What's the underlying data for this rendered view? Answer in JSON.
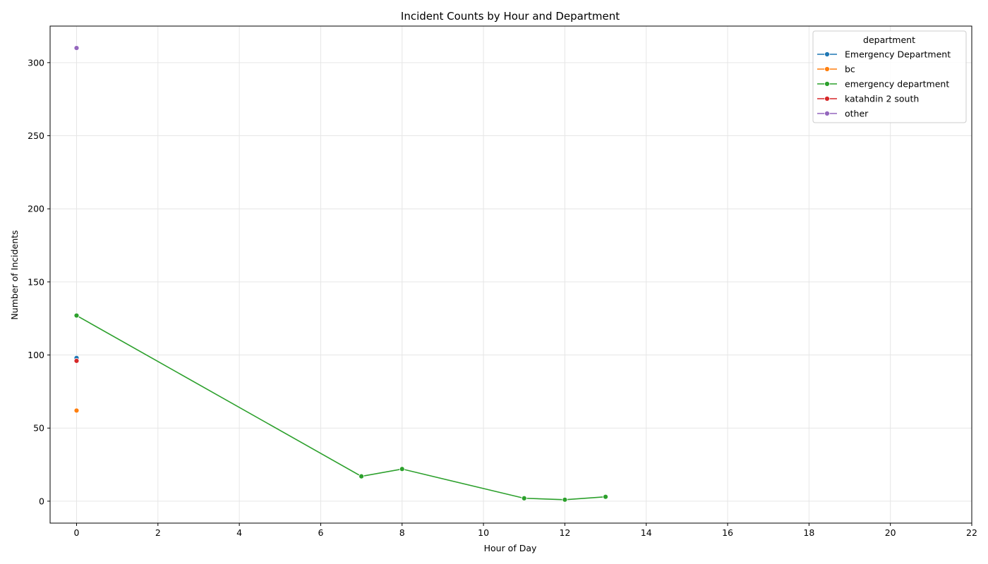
{
  "chart_data": {
    "type": "line",
    "title": "Incident Counts by Hour and Department",
    "xlabel": "Hour of Day",
    "ylabel": "Number of Incidents",
    "xlim": [
      -0.65,
      22
    ],
    "ylim": [
      -15,
      325
    ],
    "xticks": [
      0,
      2,
      4,
      6,
      8,
      10,
      12,
      14,
      16,
      18,
      20,
      22
    ],
    "yticks": [
      0,
      50,
      100,
      150,
      200,
      250,
      300
    ],
    "grid": true,
    "legend_title": "department",
    "legend_position": "top-right",
    "series": [
      {
        "name": "Emergency Department",
        "color": "#1f77b4",
        "x": [
          0
        ],
        "y": [
          98
        ]
      },
      {
        "name": "bc",
        "color": "#ff7f0e",
        "x": [
          0
        ],
        "y": [
          62
        ]
      },
      {
        "name": "emergency department",
        "color": "#2ca02c",
        "x": [
          0,
          7,
          8,
          11,
          12,
          13
        ],
        "y": [
          127,
          17,
          22,
          2,
          1,
          3
        ]
      },
      {
        "name": "katahdin 2 south",
        "color": "#d62728",
        "x": [
          0
        ],
        "y": [
          96
        ]
      },
      {
        "name": "other",
        "color": "#9467bd",
        "x": [
          0
        ],
        "y": [
          310
        ]
      }
    ]
  }
}
